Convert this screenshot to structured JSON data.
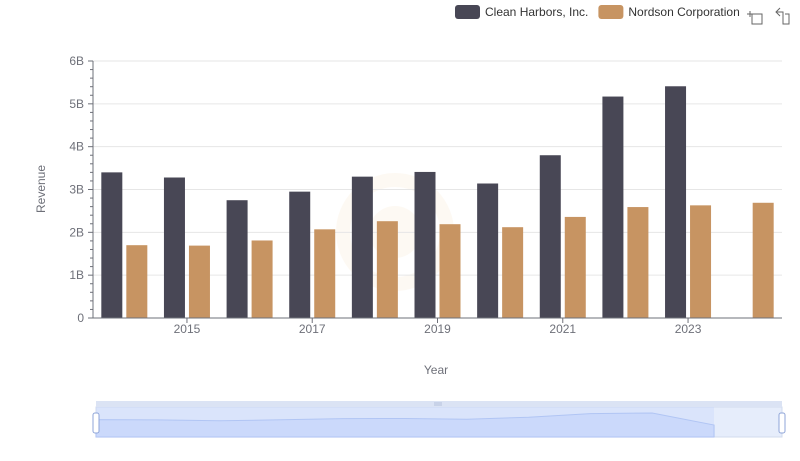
{
  "toolbar": {
    "zoom_icon": "zoom-select-icon",
    "restore_icon": "restore-icon"
  },
  "chart_data": {
    "type": "bar",
    "xlabel": "Year",
    "ylabel": "Revenue",
    "ylim": [
      0,
      6000000000
    ],
    "yticks": [
      0,
      1000000000,
      2000000000,
      3000000000,
      4000000000,
      5000000000,
      6000000000
    ],
    "ytick_labels": [
      "0",
      "1B",
      "2B",
      "3B",
      "4B",
      "5B",
      "6B"
    ],
    "categories": [
      "2014",
      "2015",
      "2016",
      "2017",
      "2018",
      "2019",
      "2020",
      "2021",
      "2022",
      "2023",
      "2024"
    ],
    "xtick_labels": [
      "2015",
      "2017",
      "2019",
      "2021",
      "2023"
    ],
    "grid": true,
    "legend": "top-right",
    "series": [
      {
        "name": "Clean Harbors, Inc.",
        "color": "#484755",
        "values": [
          3400000000,
          3280000000,
          2750000000,
          2950000000,
          3300000000,
          3410000000,
          3140000000,
          3800000000,
          5170000000,
          5410000000,
          null
        ]
      },
      {
        "name": "Nordson Corporation",
        "color": "#c79462",
        "values": [
          1700000000,
          1690000000,
          1810000000,
          2070000000,
          2260000000,
          2190000000,
          2120000000,
          2360000000,
          2590000000,
          2630000000,
          2690000000
        ]
      }
    ]
  }
}
